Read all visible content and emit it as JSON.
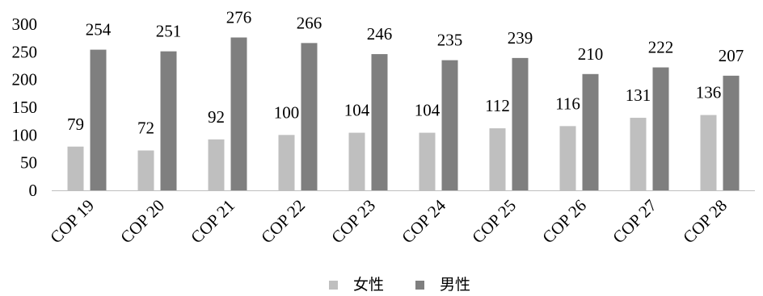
{
  "chart_data": {
    "type": "bar",
    "categories": [
      "COP 19",
      "COP 20",
      "COP 21",
      "COP 22",
      "COP 23",
      "COP 24",
      "COP 25",
      "COP 26",
      "COP 27",
      "COP 28"
    ],
    "series": [
      {
        "name": "女性",
        "color": "#bfbfbf",
        "values": [
          79,
          72,
          92,
          100,
          104,
          104,
          112,
          116,
          131,
          136
        ]
      },
      {
        "name": "男性",
        "color": "#7f7f7f",
        "values": [
          254,
          251,
          276,
          266,
          246,
          235,
          239,
          210,
          222,
          207
        ]
      }
    ],
    "ylim": [
      0,
      300
    ],
    "yticks": [
      "0",
      "50",
      "100",
      "150",
      "200",
      "250",
      "300"
    ],
    "grid": false,
    "legend_position": "bottom-center",
    "title": "",
    "xlabel": "",
    "ylabel": ""
  }
}
